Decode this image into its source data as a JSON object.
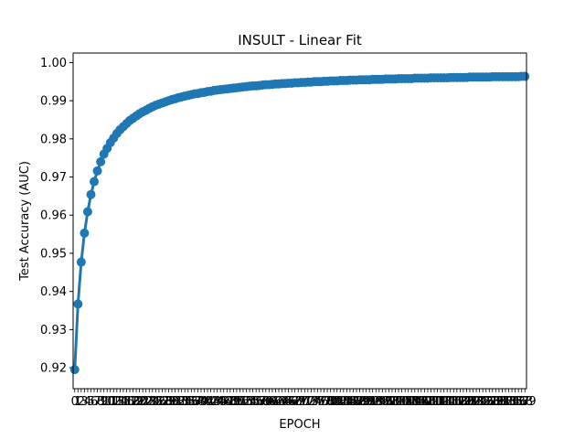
{
  "chart_data": {
    "type": "line",
    "title": "INSULT - Linear Fit",
    "xlabel": "EPOCH",
    "ylabel": "Test Accuracy (AUC)",
    "ylim": [
      0.9145,
      1.0025
    ],
    "xlim": [
      -0.5,
      139.5
    ],
    "yticks": [
      "0.92",
      "0.93",
      "0.94",
      "0.95",
      "0.96",
      "0.97",
      "0.98",
      "0.99",
      "1.00"
    ],
    "grid": false,
    "legend": "none",
    "marker": "circle",
    "color": "#1f77b4",
    "series": [
      {
        "x_start": 0,
        "x_end": 139,
        "y": [
          0.9195,
          0.9367,
          0.9477,
          0.9553,
          0.9609,
          0.9654,
          0.9688,
          0.9716,
          0.974,
          0.976,
          0.9775,
          0.979,
          0.9802,
          0.9814,
          0.9824,
          0.9832,
          0.984,
          0.9848,
          0.9854,
          0.986,
          0.9866,
          0.9871,
          0.9875,
          0.988,
          0.9884,
          0.9888,
          0.9891,
          0.9894,
          0.9897,
          0.99,
          0.9903,
          0.9905,
          0.9908,
          0.991,
          0.9912,
          0.9914,
          0.9916,
          0.9918,
          0.9919,
          0.9921,
          0.9922,
          0.9924,
          0.9925,
          0.9927,
          0.9928,
          0.9929,
          0.993,
          0.9931,
          0.9932,
          0.9933,
          0.9934,
          0.9935,
          0.9936,
          0.9937,
          0.9938,
          0.9939,
          0.9939,
          0.994,
          0.9941,
          0.9942,
          0.9942,
          0.9943,
          0.9944,
          0.9944,
          0.9945,
          0.9945,
          0.9946,
          0.9946,
          0.9947,
          0.9947,
          0.9948,
          0.9948,
          0.9949,
          0.9949,
          0.995,
          0.995,
          0.995,
          0.9951,
          0.9951,
          0.9952,
          0.9952,
          0.9952,
          0.9953,
          0.9953,
          0.9953,
          0.9954,
          0.9954,
          0.9954,
          0.9955,
          0.9955,
          0.9955,
          0.9955,
          0.9956,
          0.9956,
          0.9956,
          0.9956,
          0.9957,
          0.9957,
          0.9957,
          0.9957,
          0.9958,
          0.9958,
          0.9958,
          0.9958,
          0.9958,
          0.9959,
          0.9959,
          0.9959,
          0.9959,
          0.9959,
          0.996,
          0.996,
          0.996,
          0.996,
          0.996,
          0.996,
          0.9961,
          0.9961,
          0.9961,
          0.9961,
          0.9961,
          0.9961,
          0.9962,
          0.9962,
          0.9962,
          0.9962,
          0.9962,
          0.9962,
          0.9962,
          0.9963,
          0.9963,
          0.9963,
          0.9963,
          0.9963,
          0.9963,
          0.9963,
          0.9963,
          0.9963,
          0.9964,
          0.9964
        ]
      }
    ]
  }
}
